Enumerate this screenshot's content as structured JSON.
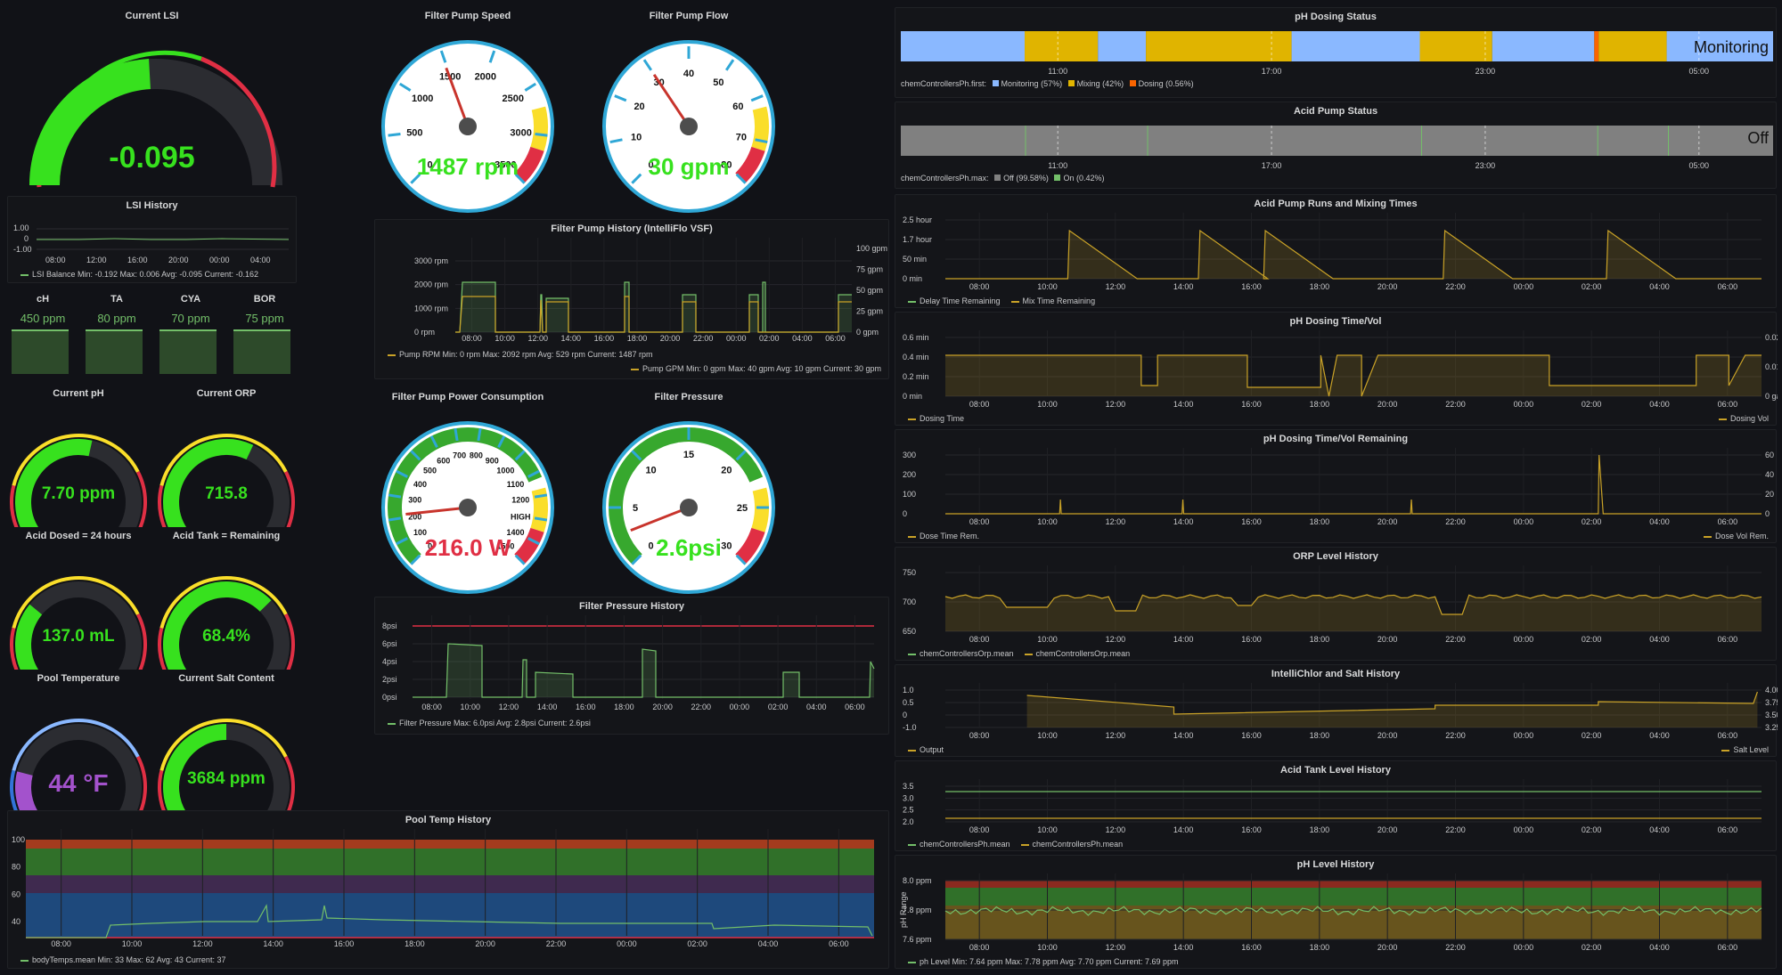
{
  "colors": {
    "bg": "#111217",
    "green": "#73bf69",
    "bright_green": "#37e11e",
    "yellow": "#fade2a",
    "red": "#e02f44",
    "gold": "#c9a227",
    "blue": "#8ab8ff",
    "purple": "#a352cc"
  },
  "lsi": {
    "title": "Current LSI",
    "value": "-0.095",
    "level": -0.095
  },
  "lsi_history": {
    "title": "LSI History",
    "yticks": [
      "1.00",
      "0",
      "-1.00"
    ],
    "xticks": [
      "08:00",
      "12:00",
      "16:00",
      "20:00",
      "00:00",
      "04:00"
    ],
    "legend": "LSI Balance  Min: -0.192  Max: 0.006  Avg: -0.095  Current: -0.162"
  },
  "chem_stats": [
    {
      "label": "cH",
      "value": "450 ppm"
    },
    {
      "label": "TA",
      "value": "80 ppm"
    },
    {
      "label": "CYA",
      "value": "70 ppm"
    },
    {
      "label": "BOR",
      "value": "75 ppm"
    }
  ],
  "small_gauges": [
    {
      "title": "Current pH",
      "value": "7.70 ppm",
      "level": 0.55,
      "color": "#37e11e"
    },
    {
      "title": "Current ORP",
      "value": "715.8",
      "level": 0.6,
      "color": "#37e11e"
    },
    {
      "title": "Acid Dosed = 24 hours",
      "value": "137.0 mL",
      "level": 0.3,
      "color": "#37e11e"
    },
    {
      "title": "Acid Tank = Remaining",
      "value": "68.4%",
      "level": 0.68,
      "color": "#37e11e"
    },
    {
      "title": "Pool Temperature",
      "value": "44 °F",
      "level": 0.2,
      "color": "#a352cc"
    },
    {
      "title": "Current Salt Content",
      "value": "3684 ppm",
      "level": 0.5,
      "color": "#37e11e"
    }
  ],
  "dials": [
    {
      "title": "Filter Pump Speed",
      "value": "1487 rpm",
      "color": "#37e11e",
      "ticks": [
        "0",
        "500",
        "1000",
        "1500",
        "2000",
        "2500",
        "3000",
        "3500"
      ],
      "fraction": 0.425
    },
    {
      "title": "Filter Pump Flow",
      "value": "30 gpm",
      "color": "#37e11e",
      "ticks": [
        "0",
        "10",
        "20",
        "30",
        "40",
        "50",
        "60",
        "70",
        "80"
      ],
      "fraction": 0.375
    },
    {
      "title": "Filter Pump Power Consumption",
      "value": "216.0 W",
      "color": "#e02f44",
      "ticks": [
        "0",
        "100",
        "200",
        "300",
        "400",
        "500",
        "600",
        "700",
        "800",
        "900",
        "1000",
        "1100",
        "1200",
        "HIGH",
        "1400",
        "1500"
      ],
      "fraction": 0.144
    },
    {
      "title": "Filter Pressure",
      "value": "2.6psi",
      "color": "#37e11e",
      "ticks": [
        "0",
        "5",
        "10",
        "15",
        "20",
        "25",
        "30"
      ],
      "fraction": 0.087
    }
  ],
  "pump_history": {
    "title": "Filter Pump History (IntelliFlo VSF)",
    "yticks_left": [
      "3000 rpm",
      "2000 rpm",
      "1000 rpm",
      "0 rpm"
    ],
    "yticks_right": [
      "100 gpm",
      "75 gpm",
      "50 gpm",
      "25 gpm",
      "0 gpm"
    ],
    "xticks": [
      "08:00",
      "10:00",
      "12:00",
      "14:00",
      "16:00",
      "18:00",
      "20:00",
      "22:00",
      "00:00",
      "02:00",
      "04:00",
      "06:00"
    ],
    "legend1": "Pump RPM  Min: 0 rpm  Max: 2092 rpm  Avg: 529 rpm  Current: 1487 rpm",
    "legend2": "Pump GPM  Min: 0 gpm  Max: 40 gpm  Avg: 10 gpm  Current: 30 gpm"
  },
  "pressure_history": {
    "title": "Filter Pressure History",
    "yticks": [
      "8psi",
      "6psi",
      "4psi",
      "2psi",
      "0psi"
    ],
    "xticks": [
      "08:00",
      "10:00",
      "12:00",
      "14:00",
      "16:00",
      "18:00",
      "20:00",
      "22:00",
      "00:00",
      "02:00",
      "04:00",
      "06:00"
    ],
    "legend": "Filter Pressure  Max: 6.0psi  Avg: 2.8psi  Current: 2.6psi"
  },
  "temp_history": {
    "title": "Pool Temp History",
    "yticks": [
      "100",
      "80",
      "60",
      "40"
    ],
    "xticks": [
      "08:00",
      "10:00",
      "12:00",
      "14:00",
      "16:00",
      "18:00",
      "20:00",
      "22:00",
      "00:00",
      "02:00",
      "04:00",
      "06:00"
    ],
    "legend": "bodyTemps.mean  Min: 33  Max: 62  Avg: 43  Current: 37"
  },
  "ph_dosing_status": {
    "title": "pH Dosing Status",
    "state": "Monitoring",
    "xticks": [
      "11:00",
      "17:00",
      "23:00",
      "05:00"
    ],
    "legend_prefix": "chemControllersPh.first:",
    "legend": [
      {
        "label": "Monitoring (57%)",
        "color": "#8ab8ff"
      },
      {
        "label": "Mixing (42%)",
        "color": "#e0b400"
      },
      {
        "label": "Dosing (0.56%)",
        "color": "#fa6400"
      }
    ]
  },
  "acid_pump_status": {
    "title": "Acid Pump Status",
    "state": "Off",
    "xticks": [
      "11:00",
      "17:00",
      "23:00",
      "05:00"
    ],
    "legend_prefix": "chemControllersPh.max:",
    "legend": [
      {
        "label": "Off (99.58%)",
        "color": "#808080"
      },
      {
        "label": "On (0.42%)",
        "color": "#73bf69"
      }
    ]
  },
  "acid_runs": {
    "title": "Acid Pump Runs and Mixing Times",
    "yticks": [
      "2.5 hour",
      "1.7 hour",
      "50 min",
      "0 min"
    ],
    "xticks": [
      "08:00",
      "10:00",
      "12:00",
      "14:00",
      "16:00",
      "18:00",
      "20:00",
      "22:00",
      "00:00",
      "02:00",
      "04:00",
      "06:00"
    ],
    "legend": [
      "Delay Time Remaining",
      "Mix Time Remaining"
    ]
  },
  "ph_dosing_time": {
    "title": "pH Dosing Time/Vol",
    "yticks_left": [
      "0.6 min",
      "0.4 min",
      "0.2 min",
      "0 min"
    ],
    "yticks_right": [
      "0.02 gal",
      "0.01 gal",
      "0 gal"
    ],
    "xticks": [
      "08:00",
      "10:00",
      "12:00",
      "14:00",
      "16:00",
      "18:00",
      "20:00",
      "22:00",
      "00:00",
      "02:00",
      "04:00",
      "06:00"
    ],
    "legend_left": "Dosing Time",
    "legend_right": "Dosing Vol"
  },
  "ph_dosing_remaining": {
    "title": "pH Dosing Time/Vol Remaining",
    "yticks_left": [
      "300",
      "200",
      "100",
      "0"
    ],
    "yticks_right": [
      "60",
      "40",
      "20",
      "0"
    ],
    "xticks": [
      "08:00",
      "10:00",
      "12:00",
      "14:00",
      "16:00",
      "18:00",
      "20:00",
      "22:00",
      "00:00",
      "02:00",
      "04:00",
      "06:00"
    ],
    "legend_left": "Dose Time Rem.",
    "legend_right": "Dose Vol Rem."
  },
  "orp_history": {
    "title": "ORP Level History",
    "yticks": [
      "750",
      "700",
      "650"
    ],
    "xticks": [
      "08:00",
      "10:00",
      "12:00",
      "14:00",
      "16:00",
      "18:00",
      "20:00",
      "22:00",
      "00:00",
      "02:00",
      "04:00",
      "06:00"
    ],
    "legend": [
      "chemControllersOrp.mean",
      "chemControllersOrp.mean"
    ]
  },
  "salt_history": {
    "title": "IntelliChlor and Salt History",
    "yticks_left": [
      "1.0",
      "0.5",
      "0",
      "-1.0"
    ],
    "yticks_right": [
      "4.00 K",
      "3.75 K",
      "3.50 K",
      "3.25 K"
    ],
    "xticks": [
      "08:00",
      "10:00",
      "12:00",
      "14:00",
      "16:00",
      "18:00",
      "20:00",
      "22:00",
      "00:00",
      "02:00",
      "04:00",
      "06:00"
    ],
    "legend_left": "Output",
    "legend_right": "Salt Level"
  },
  "acid_tank_history": {
    "title": "Acid Tank Level History",
    "yticks": [
      "3.5",
      "3.0",
      "2.5",
      "2.0"
    ],
    "xticks": [
      "08:00",
      "10:00",
      "12:00",
      "14:00",
      "16:00",
      "18:00",
      "20:00",
      "22:00",
      "00:00",
      "02:00",
      "04:00",
      "06:00"
    ],
    "legend": [
      "chemControllersPh.mean",
      "chemControllersPh.mean"
    ]
  },
  "ph_history": {
    "title": "pH Level History",
    "ylabel": "pH Range",
    "yticks": [
      "8.0 ppm",
      "7.8 ppm",
      "7.6 ppm"
    ],
    "xticks": [
      "08:00",
      "10:00",
      "12:00",
      "14:00",
      "16:00",
      "18:00",
      "20:00",
      "22:00",
      "00:00",
      "02:00",
      "04:00",
      "06:00"
    ],
    "legend": "ph Level  Min: 7.64 ppm  Max: 7.78 ppm  Avg: 7.70 ppm  Current: 7.69 ppm"
  }
}
